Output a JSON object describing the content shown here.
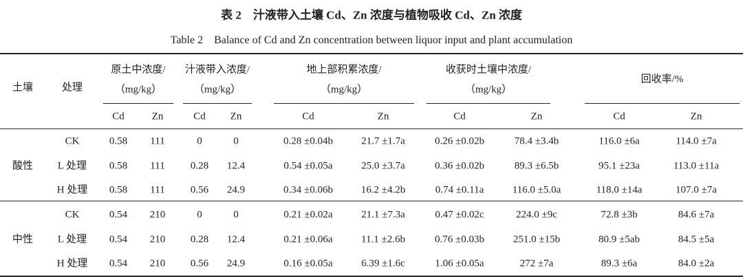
{
  "header": {
    "title": "表 2　汁液带入土壤 Cd、Zn 浓度与植物吸收 Cd、Zn 浓度",
    "subtitle": "Table 2　Balance of Cd and Zn concentration between liquor input and plant accumulation"
  },
  "table": {
    "head": {
      "soil": "土壤",
      "treatment": "处理",
      "groups": [
        {
          "lines": [
            "原土中浓度/",
            "（mg/kg）"
          ],
          "sub": [
            "Cd",
            "Zn"
          ]
        },
        {
          "lines": [
            "汁液带入浓度/",
            "（mg/kg）"
          ],
          "sub": [
            "Cd",
            "Zn"
          ]
        },
        {
          "lines": [
            "地上部积累浓度/",
            "（mg/kg）"
          ],
          "sub": [
            "Cd",
            "Zn"
          ]
        },
        {
          "lines": [
            "收获时土壤中浓度/",
            "（mg/kg）"
          ],
          "sub": [
            "Cd",
            "Zn"
          ]
        },
        {
          "lines": [
            "回收率/%"
          ],
          "sub": [
            "Cd",
            "Zn"
          ]
        }
      ]
    },
    "sections": [
      {
        "soil": "酸性",
        "rows": [
          [
            "CK",
            "0.58",
            "111",
            "0",
            "0",
            "0.28 ±0.04b",
            "21.7 ±1.7a",
            "0.26 ±0.02b",
            "78.4 ±3.4b",
            "116.0 ±6a",
            "114.0 ±7a"
          ],
          [
            "L 处理",
            "0.58",
            "111",
            "0.28",
            "12.4",
            "0.54 ±0.05a",
            "25.0 ±3.7a",
            "0.36 ±0.02b",
            "89.3 ±6.5b",
            "95.1 ±23a",
            "113.0 ±11a"
          ],
          [
            "H 处理",
            "0.58",
            "111",
            "0.56",
            "24.9",
            "0.34 ±0.06b",
            "16.2 ±4.2b",
            "0.74 ±0.11a",
            "116.0 ±5.0a",
            "118.0 ±14a",
            "107.0 ±7a"
          ]
        ]
      },
      {
        "soil": "中性",
        "rows": [
          [
            "CK",
            "0.54",
            "210",
            "0",
            "0",
            "0.21 ±0.02a",
            "21.1 ±7.3a",
            "0.47 ±0.02c",
            "224.0 ±9c",
            "72.8 ±3b",
            "84.6 ±7a"
          ],
          [
            "L 处理",
            "0.54",
            "210",
            "0.28",
            "12.4",
            "0.21 ±0.06a",
            "11.1 ±2.6b",
            "0.76 ±0.03b",
            "251.0 ±15b",
            "80.9 ±5ab",
            "84.5 ±5a"
          ],
          [
            "H 处理",
            "0.54",
            "210",
            "0.56",
            "24.9",
            "0.16 ±0.05a",
            "6.39 ±1.6c",
            "1.06 ±0.05a",
            "272 ±7a",
            "89.3 ±6a",
            "84.0 ±2a"
          ]
        ]
      }
    ]
  }
}
